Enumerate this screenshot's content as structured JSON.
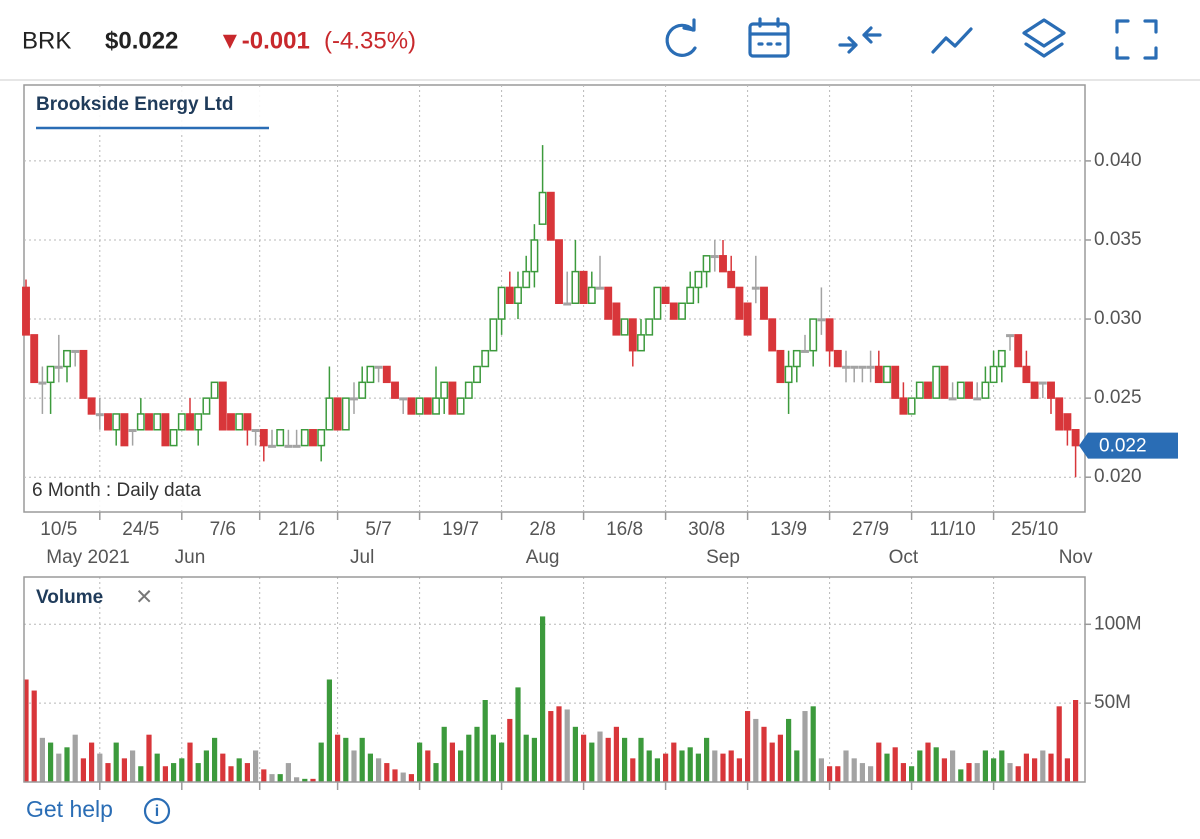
{
  "header": {
    "symbol": "BRK",
    "price": "$0.022",
    "change": "▼-0.001",
    "change_pct": "(-4.35%)"
  },
  "chart_data": [
    {
      "type": "candlestick",
      "title": "Brookside Energy Ltd",
      "subtitle": "6 Month : Daily data",
      "up_color": "#3c9a3c",
      "down_color": "#d8363a",
      "flat_color": "#a3a3a3",
      "grid": true,
      "ylim": [
        0.0178,
        0.0448
      ],
      "yticks": [
        {
          "value": 0.02,
          "label": "0.020"
        },
        0.025,
        {
          "value": 0.03,
          "label": "0.030"
        },
        0.035,
        {
          "value": 0.04,
          "label": "0.040"
        }
      ],
      "last_price": 0.022,
      "categories": [
        null,
        null,
        null,
        null,
        "10/5",
        null,
        null,
        null,
        null,
        null,
        null,
        null,
        null,
        null,
        "24/5",
        null,
        null,
        null,
        null,
        null,
        null,
        null,
        null,
        null,
        "7/6",
        null,
        null,
        null,
        null,
        null,
        null,
        null,
        null,
        "21/6",
        null,
        null,
        null,
        null,
        null,
        null,
        null,
        null,
        null,
        "5/7",
        null,
        null,
        null,
        null,
        null,
        null,
        null,
        null,
        null,
        "19/7",
        null,
        null,
        null,
        null,
        null,
        null,
        null,
        null,
        null,
        "2/8",
        null,
        null,
        null,
        null,
        null,
        null,
        null,
        null,
        null,
        "16/8",
        null,
        null,
        null,
        null,
        null,
        null,
        null,
        null,
        null,
        "30/8",
        null,
        null,
        null,
        null,
        null,
        null,
        null,
        null,
        null,
        "13/9",
        null,
        null,
        null,
        null,
        null,
        null,
        null,
        null,
        null,
        "27/9",
        null,
        null,
        null,
        null,
        null,
        null,
        null,
        null,
        null,
        "11/10",
        null,
        null,
        null,
        null,
        null,
        null,
        null,
        null,
        null,
        "25/10",
        null,
        null,
        null,
        null,
        null
      ],
      "months": [
        "May 2021",
        null,
        null,
        null,
        null,
        null,
        null,
        null,
        null,
        null,
        null,
        null,
        null,
        null,
        null,
        null,
        null,
        null,
        null,
        null,
        "Jun",
        null,
        null,
        null,
        null,
        null,
        null,
        null,
        null,
        null,
        null,
        null,
        null,
        null,
        null,
        null,
        null,
        null,
        null,
        null,
        null,
        "Jul",
        null,
        null,
        null,
        null,
        null,
        null,
        null,
        null,
        null,
        null,
        null,
        null,
        null,
        null,
        null,
        null,
        null,
        null,
        null,
        null,
        null,
        "Aug",
        null,
        null,
        null,
        null,
        null,
        null,
        null,
        null,
        null,
        null,
        null,
        null,
        null,
        null,
        null,
        null,
        null,
        null,
        null,
        null,
        null,
        "Sep",
        null,
        null,
        null,
        null,
        null,
        null,
        null,
        null,
        null,
        null,
        null,
        null,
        null,
        null,
        null,
        null,
        null,
        null,
        null,
        null,
        null,
        "Oct",
        null,
        null,
        null,
        null,
        null,
        null,
        null,
        null,
        null,
        null,
        null,
        null,
        null,
        null,
        null,
        null,
        null,
        null,
        null,
        null,
        "Nov"
      ],
      "ohlc": [
        [
          0.032,
          0.0325,
          0.029,
          0.029
        ],
        [
          0.029,
          0.029,
          0.026,
          0.026
        ],
        [
          0.026,
          0.027,
          0.024,
          0.026
        ],
        [
          0.026,
          0.027,
          0.024,
          0.027
        ],
        [
          0.027,
          0.029,
          0.026,
          0.027
        ],
        [
          0.027,
          0.028,
          0.026,
          0.028
        ],
        [
          0.028,
          0.028,
          0.027,
          0.028
        ],
        [
          0.028,
          0.028,
          0.025,
          0.025
        ],
        [
          0.025,
          0.025,
          0.024,
          0.024
        ],
        [
          0.024,
          0.025,
          0.023,
          0.024
        ],
        [
          0.024,
          0.024,
          0.023,
          0.023
        ],
        [
          0.023,
          0.024,
          0.022,
          0.024
        ],
        [
          0.024,
          0.024,
          0.022,
          0.022
        ],
        [
          0.023,
          0.023,
          0.022,
          0.023
        ],
        [
          0.023,
          0.025,
          0.023,
          0.024
        ],
        [
          0.024,
          0.024,
          0.023,
          0.023
        ],
        [
          0.023,
          0.024,
          0.023,
          0.024
        ],
        [
          0.024,
          0.024,
          0.022,
          0.022
        ],
        [
          0.022,
          0.023,
          0.022,
          0.023
        ],
        [
          0.023,
          0.024,
          0.023,
          0.024
        ],
        [
          0.024,
          0.025,
          0.023,
          0.023
        ],
        [
          0.023,
          0.024,
          0.022,
          0.024
        ],
        [
          0.024,
          0.025,
          0.024,
          0.025
        ],
        [
          0.025,
          0.026,
          0.025,
          0.026
        ],
        [
          0.026,
          0.026,
          0.023,
          0.023
        ],
        [
          0.024,
          0.024,
          0.023,
          0.023
        ],
        [
          0.023,
          0.024,
          0.023,
          0.024
        ],
        [
          0.024,
          0.024,
          0.022,
          0.023
        ],
        [
          0.023,
          0.023,
          0.022,
          0.023
        ],
        [
          0.023,
          0.023,
          0.021,
          0.022
        ],
        [
          0.022,
          0.023,
          0.022,
          0.022
        ],
        [
          0.022,
          0.023,
          0.022,
          0.023
        ],
        [
          0.022,
          0.023,
          0.022,
          0.022
        ],
        [
          0.022,
          0.023,
          0.022,
          0.022
        ],
        [
          0.022,
          0.023,
          0.022,
          0.023
        ],
        [
          0.023,
          0.023,
          0.022,
          0.022
        ],
        [
          0.022,
          0.023,
          0.021,
          0.023
        ],
        [
          0.023,
          0.027,
          0.023,
          0.025
        ],
        [
          0.025,
          0.025,
          0.023,
          0.023
        ],
        [
          0.023,
          0.025,
          0.023,
          0.025
        ],
        [
          0.025,
          0.026,
          0.024,
          0.025
        ],
        [
          0.025,
          0.027,
          0.025,
          0.026
        ],
        [
          0.026,
          0.027,
          0.026,
          0.027
        ],
        [
          0.027,
          0.027,
          0.026,
          0.027
        ],
        [
          0.027,
          0.027,
          0.026,
          0.026
        ],
        [
          0.026,
          0.026,
          0.025,
          0.025
        ],
        [
          0.025,
          0.025,
          0.024,
          0.025
        ],
        [
          0.025,
          0.025,
          0.024,
          0.024
        ],
        [
          0.024,
          0.025,
          0.024,
          0.025
        ],
        [
          0.025,
          0.025,
          0.024,
          0.024
        ],
        [
          0.024,
          0.027,
          0.024,
          0.025
        ],
        [
          0.025,
          0.026,
          0.024,
          0.026
        ],
        [
          0.026,
          0.026,
          0.024,
          0.024
        ],
        [
          0.024,
          0.025,
          0.024,
          0.025
        ],
        [
          0.025,
          0.026,
          0.025,
          0.026
        ],
        [
          0.026,
          0.027,
          0.026,
          0.027
        ],
        [
          0.027,
          0.028,
          0.027,
          0.028
        ],
        [
          0.028,
          0.03,
          0.028,
          0.03
        ],
        [
          0.03,
          0.032,
          0.029,
          0.032
        ],
        [
          0.032,
          0.033,
          0.031,
          0.031
        ],
        [
          0.031,
          0.033,
          0.03,
          0.032
        ],
        [
          0.032,
          0.034,
          0.032,
          0.033
        ],
        [
          0.033,
          0.036,
          0.032,
          0.035
        ],
        [
          0.036,
          0.041,
          0.036,
          0.038
        ],
        [
          0.038,
          0.038,
          0.035,
          0.035
        ],
        [
          0.035,
          0.035,
          0.031,
          0.031
        ],
        [
          0.031,
          0.033,
          0.031,
          0.031
        ],
        [
          0.031,
          0.035,
          0.031,
          0.033
        ],
        [
          0.033,
          0.033,
          0.031,
          0.031
        ],
        [
          0.031,
          0.033,
          0.031,
          0.032
        ],
        [
          0.032,
          0.034,
          0.032,
          0.032
        ],
        [
          0.032,
          0.032,
          0.03,
          0.03
        ],
        [
          0.031,
          0.031,
          0.029,
          0.029
        ],
        [
          0.029,
          0.03,
          0.029,
          0.03
        ],
        [
          0.03,
          0.03,
          0.027,
          0.028
        ],
        [
          0.028,
          0.03,
          0.028,
          0.029
        ],
        [
          0.029,
          0.03,
          0.029,
          0.03
        ],
        [
          0.03,
          0.032,
          0.03,
          0.032
        ],
        [
          0.032,
          0.032,
          0.031,
          0.031
        ],
        [
          0.031,
          0.031,
          0.03,
          0.03
        ],
        [
          0.03,
          0.031,
          0.03,
          0.031
        ],
        [
          0.031,
          0.033,
          0.031,
          0.032
        ],
        [
          0.032,
          0.033,
          0.031,
          0.033
        ],
        [
          0.033,
          0.034,
          0.032,
          0.034
        ],
        [
          0.034,
          0.035,
          0.033,
          0.034
        ],
        [
          0.034,
          0.035,
          0.033,
          0.033
        ],
        [
          0.033,
          0.034,
          0.032,
          0.032
        ],
        [
          0.032,
          0.032,
          0.03,
          0.03
        ],
        [
          0.031,
          0.031,
          0.029,
          0.029
        ],
        [
          0.032,
          0.034,
          0.031,
          0.032
        ],
        [
          0.032,
          0.032,
          0.03,
          0.03
        ],
        [
          0.03,
          0.03,
          0.028,
          0.028
        ],
        [
          0.028,
          0.028,
          0.026,
          0.026
        ],
        [
          0.026,
          0.028,
          0.024,
          0.027
        ],
        [
          0.027,
          0.028,
          0.026,
          0.028
        ],
        [
          0.028,
          0.029,
          0.028,
          0.028
        ],
        [
          0.028,
          0.03,
          0.027,
          0.03
        ],
        [
          0.03,
          0.032,
          0.029,
          0.03
        ],
        [
          0.03,
          0.03,
          0.027,
          0.028
        ],
        [
          0.028,
          0.028,
          0.027,
          0.027
        ],
        [
          0.027,
          0.028,
          0.026,
          0.027
        ],
        [
          0.027,
          0.027,
          0.026,
          0.027
        ],
        [
          0.027,
          0.027,
          0.026,
          0.027
        ],
        [
          0.027,
          0.028,
          0.026,
          0.027
        ],
        [
          0.027,
          0.028,
          0.026,
          0.026
        ],
        [
          0.026,
          0.027,
          0.026,
          0.027
        ],
        [
          0.027,
          0.027,
          0.025,
          0.025
        ],
        [
          0.025,
          0.026,
          0.024,
          0.024
        ],
        [
          0.024,
          0.025,
          0.024,
          0.025
        ],
        [
          0.025,
          0.026,
          0.025,
          0.026
        ],
        [
          0.026,
          0.026,
          0.025,
          0.025
        ],
        [
          0.025,
          0.027,
          0.025,
          0.027
        ],
        [
          0.027,
          0.027,
          0.025,
          0.025
        ],
        [
          0.025,
          0.026,
          0.025,
          0.025
        ],
        [
          0.025,
          0.026,
          0.025,
          0.026
        ],
        [
          0.026,
          0.026,
          0.025,
          0.025
        ],
        [
          0.025,
          0.026,
          0.025,
          0.025
        ],
        [
          0.025,
          0.027,
          0.025,
          0.026
        ],
        [
          0.026,
          0.028,
          0.026,
          0.027
        ],
        [
          0.027,
          0.028,
          0.026,
          0.028
        ],
        [
          0.029,
          0.029,
          0.028,
          0.029
        ],
        [
          0.029,
          0.029,
          0.027,
          0.027
        ],
        [
          0.027,
          0.028,
          0.026,
          0.026
        ],
        [
          0.026,
          0.026,
          0.025,
          0.025
        ],
        [
          0.026,
          0.026,
          0.025,
          0.026
        ],
        [
          0.026,
          0.026,
          0.024,
          0.025
        ],
        [
          0.025,
          0.025,
          0.023,
          0.023
        ],
        [
          0.024,
          0.024,
          0.022,
          0.023
        ],
        [
          0.023,
          0.023,
          0.02,
          0.022
        ]
      ]
    },
    {
      "type": "bar",
      "title": "Volume",
      "close": "×",
      "grid": true,
      "ylim": [
        0,
        130000000
      ],
      "yticks": [
        {
          "value": 50000000,
          "label": "50M"
        },
        {
          "value": 100000000,
          "label": "100M"
        }
      ],
      "values": [
        65000000,
        58000000,
        28000000,
        25000000,
        18000000,
        22000000,
        30000000,
        15000000,
        25000000,
        18000000,
        12000000,
        25000000,
        15000000,
        20000000,
        10000000,
        30000000,
        18000000,
        10000000,
        12000000,
        15000000,
        25000000,
        12000000,
        20000000,
        28000000,
        18000000,
        10000000,
        15000000,
        12000000,
        20000000,
        8000000,
        5000000,
        5000000,
        12000000,
        3000000,
        2000000,
        2000000,
        25000000,
        65000000,
        30000000,
        28000000,
        20000000,
        28000000,
        18000000,
        15000000,
        12000000,
        8000000,
        6000000,
        5000000,
        25000000,
        20000000,
        12000000,
        35000000,
        25000000,
        20000000,
        30000000,
        35000000,
        52000000,
        30000000,
        25000000,
        40000000,
        60000000,
        30000000,
        28000000,
        105000000,
        45000000,
        48000000,
        46000000,
        35000000,
        30000000,
        25000000,
        32000000,
        28000000,
        35000000,
        28000000,
        15000000,
        28000000,
        20000000,
        15000000,
        18000000,
        25000000,
        20000000,
        22000000,
        18000000,
        28000000,
        20000000,
        18000000,
        20000000,
        15000000,
        45000000,
        40000000,
        35000000,
        25000000,
        30000000,
        40000000,
        20000000,
        45000000,
        48000000,
        15000000,
        10000000,
        10000000,
        20000000,
        15000000,
        12000000,
        10000000,
        25000000,
        18000000,
        22000000,
        12000000,
        10000000,
        20000000,
        25000000,
        22000000,
        15000000,
        20000000,
        8000000,
        12000000,
        12000000,
        20000000,
        15000000,
        20000000,
        12000000,
        10000000,
        18000000,
        15000000,
        20000000,
        18000000,
        48000000,
        15000000,
        52000000
      ]
    }
  ],
  "footer": {
    "help": "Get help",
    "info": "i"
  }
}
